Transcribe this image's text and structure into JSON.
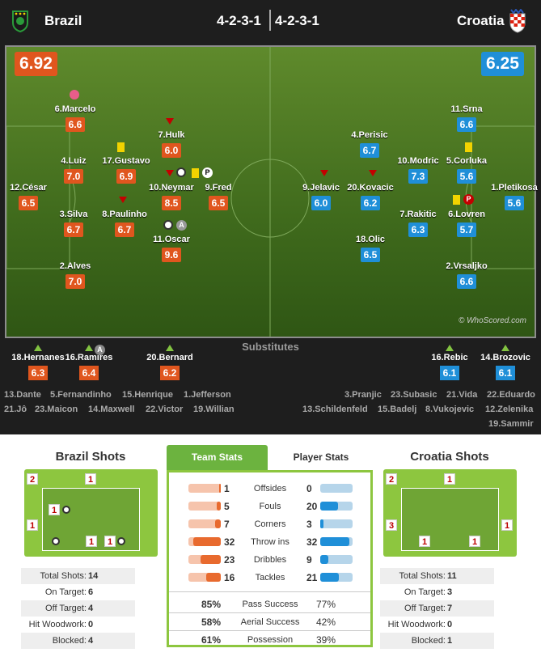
{
  "header": {
    "home_team": "Brazil",
    "away_team": "Croatia",
    "home_formation": "4-2-3-1",
    "away_formation": "4-2-3-1"
  },
  "pitch": {
    "home_rating": "6.92",
    "away_rating": "6.25",
    "watermark": "© WhoScored.com",
    "home_players": [
      {
        "name": "12.César",
        "rating": "6.5"
      },
      {
        "name": "6.Marcelo",
        "rating": "6.6"
      },
      {
        "name": "4.Luiz",
        "rating": "7.0"
      },
      {
        "name": "3.Silva",
        "rating": "6.7"
      },
      {
        "name": "2.Alves",
        "rating": "7.0"
      },
      {
        "name": "17.Gustavo",
        "rating": "6.9"
      },
      {
        "name": "8.Paulinho",
        "rating": "6.7"
      },
      {
        "name": "7.Hulk",
        "rating": "6.0"
      },
      {
        "name": "10.Neymar",
        "rating": "8.5"
      },
      {
        "name": "11.Oscar",
        "rating": "9.6"
      },
      {
        "name": "9.Fred",
        "rating": "6.5"
      }
    ],
    "away_players": [
      {
        "name": "9.Jelavic",
        "rating": "6.0"
      },
      {
        "name": "20.Kovacic",
        "rating": "6.2"
      },
      {
        "name": "4.Perisic",
        "rating": "6.7"
      },
      {
        "name": "10.Modric",
        "rating": "7.3"
      },
      {
        "name": "7.Rakitic",
        "rating": "6.3"
      },
      {
        "name": "18.Olic",
        "rating": "6.5"
      },
      {
        "name": "11.Srna",
        "rating": "6.6"
      },
      {
        "name": "5.Corluka",
        "rating": "5.6"
      },
      {
        "name": "6.Lovren",
        "rating": "5.7"
      },
      {
        "name": "2.Vrsaljko",
        "rating": "6.6"
      },
      {
        "name": "1.Pletikosa",
        "rating": "5.6"
      }
    ],
    "badge_a": "A",
    "badge_p": "P"
  },
  "substitutes": {
    "title": "Substitutes",
    "home_used": [
      {
        "name": "18.Hernanes",
        "rating": "6.3"
      },
      {
        "name": "16.Ramires",
        "rating": "6.4"
      },
      {
        "name": "20.Bernard",
        "rating": "6.2"
      }
    ],
    "away_used": [
      {
        "name": "16.Rebic",
        "rating": "6.1"
      },
      {
        "name": "14.Brozovic",
        "rating": "6.1"
      }
    ],
    "home_bench": [
      "13.Dante",
      "5.Fernandinho",
      "15.Henrique",
      "1.Jefferson",
      "21.Jô",
      "23.Maicon",
      "14.Maxwell",
      "22.Victor",
      "19.Willian"
    ],
    "away_bench": [
      "3.Pranjic",
      "23.Subasic",
      "21.Vida",
      "22.Eduardo",
      "13.Schildenfeld",
      "15.Badelj",
      "8.Vukojevic",
      "12.Zelenika",
      "19.Sammir"
    ]
  },
  "home_shots": {
    "title": "Brazil Shots",
    "zones": [
      "2",
      "1",
      "1",
      "1",
      "1",
      "1"
    ],
    "rows": [
      {
        "label": "Total Shots:",
        "value": "14"
      },
      {
        "label": "On Target:",
        "value": "6"
      },
      {
        "label": "Off Target:",
        "value": "4"
      },
      {
        "label": "Hit Woodwork:",
        "value": "0"
      },
      {
        "label": "Blocked:",
        "value": "4"
      }
    ]
  },
  "away_shots": {
    "title": "Croatia Shots",
    "zones": [
      "2",
      "1",
      "3",
      "1",
      "1",
      "1"
    ],
    "rows": [
      {
        "label": "Total Shots:",
        "value": "11"
      },
      {
        "label": "On Target:",
        "value": "3"
      },
      {
        "label": "Off Target:",
        "value": "7"
      },
      {
        "label": "Hit Woodwork:",
        "value": "0"
      },
      {
        "label": "Blocked:",
        "value": "1"
      }
    ]
  },
  "team_stats": {
    "tab_team": "Team Stats",
    "tab_player": "Player Stats",
    "rows": [
      {
        "label": "Offsides",
        "home": "1",
        "away": "0",
        "home_frac": 0.05,
        "away_frac": 0.0
      },
      {
        "label": "Fouls",
        "home": "5",
        "away": "20",
        "home_frac": 0.12,
        "away_frac": 0.55
      },
      {
        "label": "Corners",
        "home": "7",
        "away": "3",
        "home_frac": 0.18,
        "away_frac": 0.1
      },
      {
        "label": "Throw ins",
        "home": "32",
        "away": "32",
        "home_frac": 0.85,
        "away_frac": 0.9
      },
      {
        "label": "Dribbles",
        "home": "23",
        "away": "9",
        "home_frac": 0.62,
        "away_frac": 0.25
      },
      {
        "label": "Tackles",
        "home": "16",
        "away": "21",
        "home_frac": 0.44,
        "away_frac": 0.58
      }
    ],
    "percent_rows": [
      {
        "label": "Pass Success",
        "home": "85%",
        "away": "77%"
      },
      {
        "label": "Aerial Success",
        "home": "58%",
        "away": "42%"
      },
      {
        "label": "Possession",
        "home": "61%",
        "away": "39%"
      }
    ]
  }
}
